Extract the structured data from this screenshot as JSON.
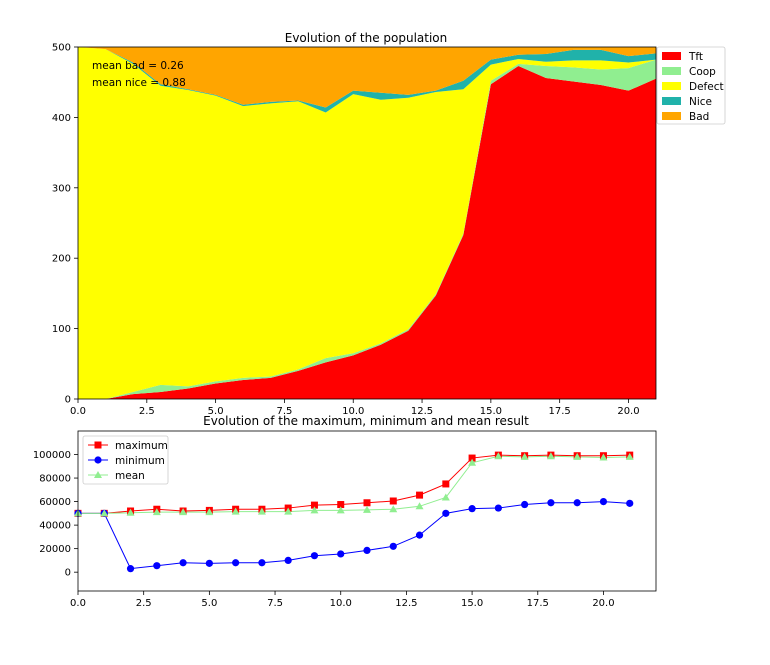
{
  "chart_data": [
    {
      "type": "area",
      "stacked": true,
      "title": "Evolution of the population",
      "xlabel": "",
      "ylabel": "",
      "xlim": [
        0,
        21
      ],
      "ylim": [
        0,
        500
      ],
      "xticks": [
        "0.0",
        "2.5",
        "5.0",
        "7.5",
        "10.0",
        "12.5",
        "15.0",
        "17.5",
        "20.0"
      ],
      "yticks": [
        "0",
        "100",
        "200",
        "300",
        "400",
        "500"
      ],
      "legend_position": "outside-right",
      "annotations": [
        "mean bad = 0.26",
        "mean nice = 0.88"
      ],
      "x": [
        0,
        1,
        2,
        3,
        4,
        5,
        6,
        7,
        8,
        9,
        10,
        11,
        12,
        13,
        14,
        15,
        16,
        17,
        18,
        19,
        20,
        21
      ],
      "series": [
        {
          "name": "Tft",
          "color": "#ff0000",
          "values": [
            0,
            0,
            7,
            10,
            15,
            22,
            27,
            30,
            40,
            52,
            62,
            77,
            97,
            147,
            233,
            447,
            473,
            456,
            451,
            446,
            438,
            455
          ]
        },
        {
          "name": "Coop",
          "color": "#90ee90",
          "values": [
            0,
            0,
            3,
            10,
            3,
            3,
            3,
            2,
            2,
            6,
            3,
            2,
            2,
            2,
            2,
            5,
            3,
            17,
            20,
            22,
            32,
            27
          ]
        },
        {
          "name": "Defect",
          "color": "#ffff00",
          "values": [
            500,
            497,
            466,
            425,
            421,
            406,
            386,
            388,
            381,
            349,
            368,
            346,
            329,
            287,
            205,
            23,
            7,
            6,
            10,
            13,
            8,
            0
          ]
        },
        {
          "name": "Nice",
          "color": "#20b2aa",
          "values": [
            0,
            0,
            2,
            2,
            1,
            1,
            2,
            2,
            1,
            7,
            5,
            10,
            4,
            2,
            12,
            7,
            6,
            11,
            15,
            15,
            9,
            9
          ]
        },
        {
          "name": "Bad",
          "color": "#ffa500",
          "values": [
            0,
            3,
            22,
            53,
            60,
            68,
            82,
            78,
            76,
            86,
            62,
            65,
            68,
            62,
            48,
            18,
            11,
            10,
            4,
            4,
            13,
            9
          ]
        }
      ]
    },
    {
      "type": "line",
      "title": "Evolution of the maximum, minimum and mean result",
      "xlabel": "",
      "ylabel": "",
      "xlim": [
        0,
        22
      ],
      "ylim": [
        -16000,
        120000
      ],
      "xticks": [
        "0.0",
        "2.5",
        "5.0",
        "7.5",
        "10.0",
        "12.5",
        "15.0",
        "17.5",
        "20.0"
      ],
      "yticks": [
        "0",
        "20000",
        "40000",
        "60000",
        "80000",
        "100000"
      ],
      "legend_position": "top-left",
      "x": [
        0,
        1,
        2,
        3,
        4,
        5,
        6,
        7,
        8,
        9,
        10,
        11,
        12,
        13,
        14,
        15,
        16,
        17,
        18,
        19,
        20,
        21
      ],
      "series": [
        {
          "name": "maximum",
          "color": "#ff0000",
          "marker": "square",
          "values": [
            50000,
            50000,
            52000,
            53500,
            52000,
            52500,
            53500,
            53500,
            54500,
            57000,
            57500,
            59000,
            60500,
            65500,
            75000,
            97000,
            99500,
            99000,
            99500,
            99000,
            99000,
            99500
          ]
        },
        {
          "name": "minimum",
          "color": "#0000ff",
          "marker": "circle",
          "values": [
            50000,
            50000,
            3000,
            5500,
            8000,
            7500,
            8000,
            8000,
            10000,
            14000,
            15500,
            18500,
            22000,
            31500,
            50000,
            54000,
            54500,
            57500,
            59000,
            59000,
            60000,
            58500
          ]
        },
        {
          "name": "mean",
          "color": "#90ee90",
          "marker": "triangle",
          "values": [
            50000,
            50000,
            50500,
            51000,
            51000,
            51000,
            51500,
            51500,
            51500,
            52500,
            52500,
            53000,
            53500,
            56000,
            63500,
            93000,
            98500,
            98000,
            98500,
            98000,
            97500,
            98000
          ]
        }
      ]
    }
  ]
}
